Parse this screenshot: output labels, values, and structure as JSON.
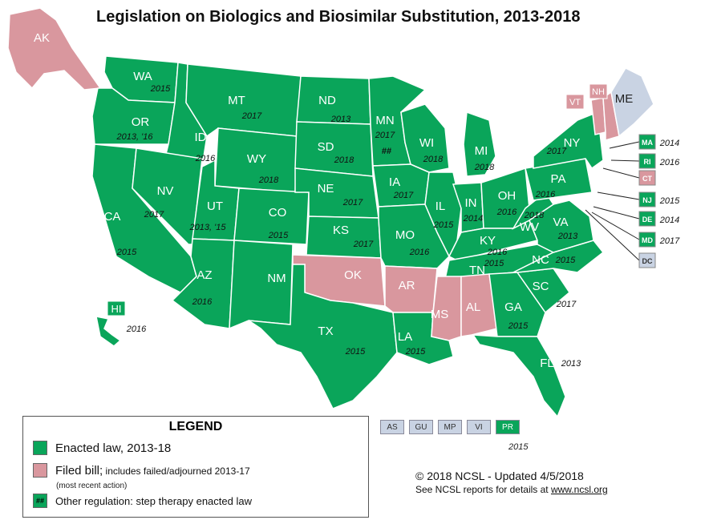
{
  "title": "Legislation on Biologics and Biosimilar Substitution, 2013-2018",
  "colors": {
    "enacted": "#0aa55a",
    "filed": "#d9979e",
    "none": "#c9d3e3",
    "border": "#ffffff"
  },
  "states": {
    "AK": {
      "label": "AK",
      "year": "",
      "status": "filed"
    },
    "WA": {
      "label": "WA",
      "year": "2015",
      "status": "enacted"
    },
    "OR": {
      "label": "OR",
      "year": "2013, '16",
      "status": "enacted"
    },
    "CA": {
      "label": "CA",
      "year": "2015",
      "status": "enacted"
    },
    "ID": {
      "label": "ID",
      "year": "2016",
      "status": "enacted"
    },
    "NV": {
      "label": "NV",
      "year": "2017",
      "status": "enacted"
    },
    "MT": {
      "label": "MT",
      "year": "2017",
      "status": "enacted"
    },
    "WY": {
      "label": "WY",
      "year": "2018",
      "status": "enacted"
    },
    "UT": {
      "label": "UT",
      "year": "2013, '15",
      "status": "enacted"
    },
    "AZ": {
      "label": "AZ",
      "year": "2016",
      "status": "enacted"
    },
    "CO": {
      "label": "CO",
      "year": "2015",
      "status": "enacted"
    },
    "NM": {
      "label": "NM",
      "year": "",
      "status": "enacted"
    },
    "ND": {
      "label": "ND",
      "year": "2013",
      "status": "enacted"
    },
    "SD": {
      "label": "SD",
      "year": "2018",
      "status": "enacted"
    },
    "NE": {
      "label": "NE",
      "year": "2017",
      "status": "enacted"
    },
    "KS": {
      "label": "KS",
      "year": "2017",
      "status": "enacted"
    },
    "OK": {
      "label": "OK",
      "year": "",
      "status": "filed"
    },
    "TX": {
      "label": "TX",
      "year": "2015",
      "status": "enacted"
    },
    "MN": {
      "label": "MN",
      "year": "2017",
      "status": "enacted",
      "mark": "##"
    },
    "IA": {
      "label": "IA",
      "year": "2017",
      "status": "enacted"
    },
    "MO": {
      "label": "MO",
      "year": "2016",
      "status": "enacted"
    },
    "AR": {
      "label": "AR",
      "year": "",
      "status": "filed"
    },
    "LA": {
      "label": "LA",
      "year": "2015",
      "status": "enacted"
    },
    "WI": {
      "label": "WI",
      "year": "2018",
      "status": "enacted"
    },
    "IL": {
      "label": "IL",
      "year": "2015",
      "status": "enacted"
    },
    "MI": {
      "label": "MI",
      "year": "2018",
      "status": "enacted"
    },
    "IN": {
      "label": "IN",
      "year": "2014",
      "status": "enacted"
    },
    "OH": {
      "label": "OH",
      "year": "2016",
      "status": "enacted"
    },
    "KY": {
      "label": "KY",
      "year": "2016",
      "status": "enacted"
    },
    "TN": {
      "label": "TN",
      "year": "2015",
      "status": "enacted"
    },
    "MS": {
      "label": "MS",
      "year": "",
      "status": "filed"
    },
    "AL": {
      "label": "AL",
      "year": "",
      "status": "filed"
    },
    "GA": {
      "label": "GA",
      "year": "2015",
      "status": "enacted"
    },
    "FL": {
      "label": "FL",
      "year": "2013",
      "status": "enacted"
    },
    "SC": {
      "label": "SC",
      "year": "2017",
      "status": "enacted"
    },
    "NC": {
      "label": "NC",
      "year": "2015",
      "status": "enacted"
    },
    "VA": {
      "label": "VA",
      "year": "2013",
      "status": "enacted"
    },
    "WV": {
      "label": "WV",
      "year": "2018",
      "status": "enacted"
    },
    "PA": {
      "label": "PA",
      "year": "2016",
      "status": "enacted"
    },
    "NY": {
      "label": "NY",
      "year": "2017",
      "status": "enacted"
    },
    "VT": {
      "label": "VT",
      "year": "",
      "status": "filed"
    },
    "NH": {
      "label": "NH",
      "year": "",
      "status": "filed"
    },
    "ME": {
      "label": "ME",
      "year": "",
      "status": "none"
    },
    "HI": {
      "label": "HI",
      "year": "2016",
      "status": "enacted"
    }
  },
  "small_states": [
    {
      "label": "MA",
      "year": "2014",
      "status": "enacted"
    },
    {
      "label": "RI",
      "year": "2016",
      "status": "enacted"
    },
    {
      "label": "CT",
      "year": "",
      "status": "filed"
    },
    {
      "label": "NJ",
      "year": "2015",
      "status": "enacted"
    },
    {
      "label": "DE",
      "year": "2014",
      "status": "enacted"
    },
    {
      "label": "MD",
      "year": "2017",
      "status": "enacted"
    },
    {
      "label": "DC",
      "year": "",
      "status": "none"
    }
  ],
  "territories": [
    {
      "label": "AS",
      "status": "none"
    },
    {
      "label": "GU",
      "status": "none"
    },
    {
      "label": "MP",
      "status": "none"
    },
    {
      "label": "VI",
      "status": "none"
    },
    {
      "label": "PR",
      "status": "enacted"
    }
  ],
  "territories_year": "2015",
  "legend": {
    "title": "LEGEND",
    "enacted": "Enacted law, 2013-18",
    "filed_main": "Filed bill;",
    "filed_small": " includes failed/adjourned 2013-17",
    "filed_sub": "(most recent action)",
    "other_mark": "##",
    "other": "Other regulation: step therapy enacted law"
  },
  "credit": {
    "line1": "© 2018 NCSL - Updated 4/5/2018",
    "line2_prefix": "See NCSL reports for details at ",
    "line2_link": "www.ncsl.org"
  }
}
